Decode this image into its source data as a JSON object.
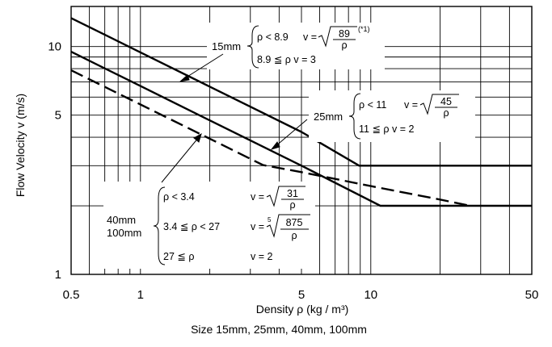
{
  "chart_data": {
    "type": "line",
    "title": "",
    "xlabel": "Density ρ (kg / m³)",
    "ylabel": "Flow Velocity v (m/s)",
    "caption": "Size 15mm, 25mm, 40mm, 100mm",
    "xscale": "log",
    "yscale": "log",
    "xlim": [
      0.5,
      50
    ],
    "ylim": [
      1,
      15
    ],
    "x_ticks": [
      0.5,
      1,
      5,
      10,
      50
    ],
    "x_tick_labels": [
      "0.5",
      "1",
      "5",
      "10",
      "50"
    ],
    "y_ticks": [
      1,
      5,
      10
    ],
    "y_tick_labels": [
      "1",
      "5",
      "10"
    ],
    "grid": true,
    "legend": "none",
    "series": [
      {
        "name": "15mm",
        "style": "solid",
        "x": [
          0.5,
          1,
          2,
          5,
          8.9,
          50
        ],
        "y": [
          13.34,
          9.43,
          6.67,
          4.22,
          3.0,
          3.0
        ]
      },
      {
        "name": "25mm",
        "style": "solid",
        "x": [
          0.5,
          1,
          2,
          5,
          11,
          50
        ],
        "y": [
          9.49,
          6.71,
          4.74,
          3.0,
          2.0,
          2.0
        ]
      },
      {
        "name": "40mm 100mm",
        "style": "dashed",
        "x": [
          0.5,
          1,
          2,
          3.4,
          5,
          10,
          20,
          27
        ],
        "y": [
          7.87,
          5.57,
          3.94,
          3.02,
          2.81,
          2.44,
          2.13,
          2.0
        ]
      }
    ],
    "annotations": {
      "s15": {
        "label": "15mm",
        "r1_cond": "ρ < 8.9",
        "r1_v": "v =",
        "r1_num": "89",
        "r1_den": "ρ",
        "r1_note": "(*1)",
        "r2": "8.9 ≦  ρ  v =  3"
      },
      "s25": {
        "label": "25mm",
        "r1_cond": "ρ < 11",
        "r1_v": "v =",
        "r1_num": "45",
        "r1_den": "ρ",
        "r2": "11 ≦  ρ  v =  2"
      },
      "s40": {
        "label1": "40mm",
        "label2": "100mm",
        "r1_cond": "ρ < 3.4",
        "r1_v": "v =",
        "r1_num": "31",
        "r1_den": "ρ",
        "r2_cond": "3.4 ≦  ρ  <  27",
        "r2_v": "v =",
        "r2_idx": "5",
        "r2_num": "875",
        "r2_den": "ρ",
        "r3_cond": "27  ≦  ρ",
        "r3_v": "v = 2"
      }
    }
  }
}
